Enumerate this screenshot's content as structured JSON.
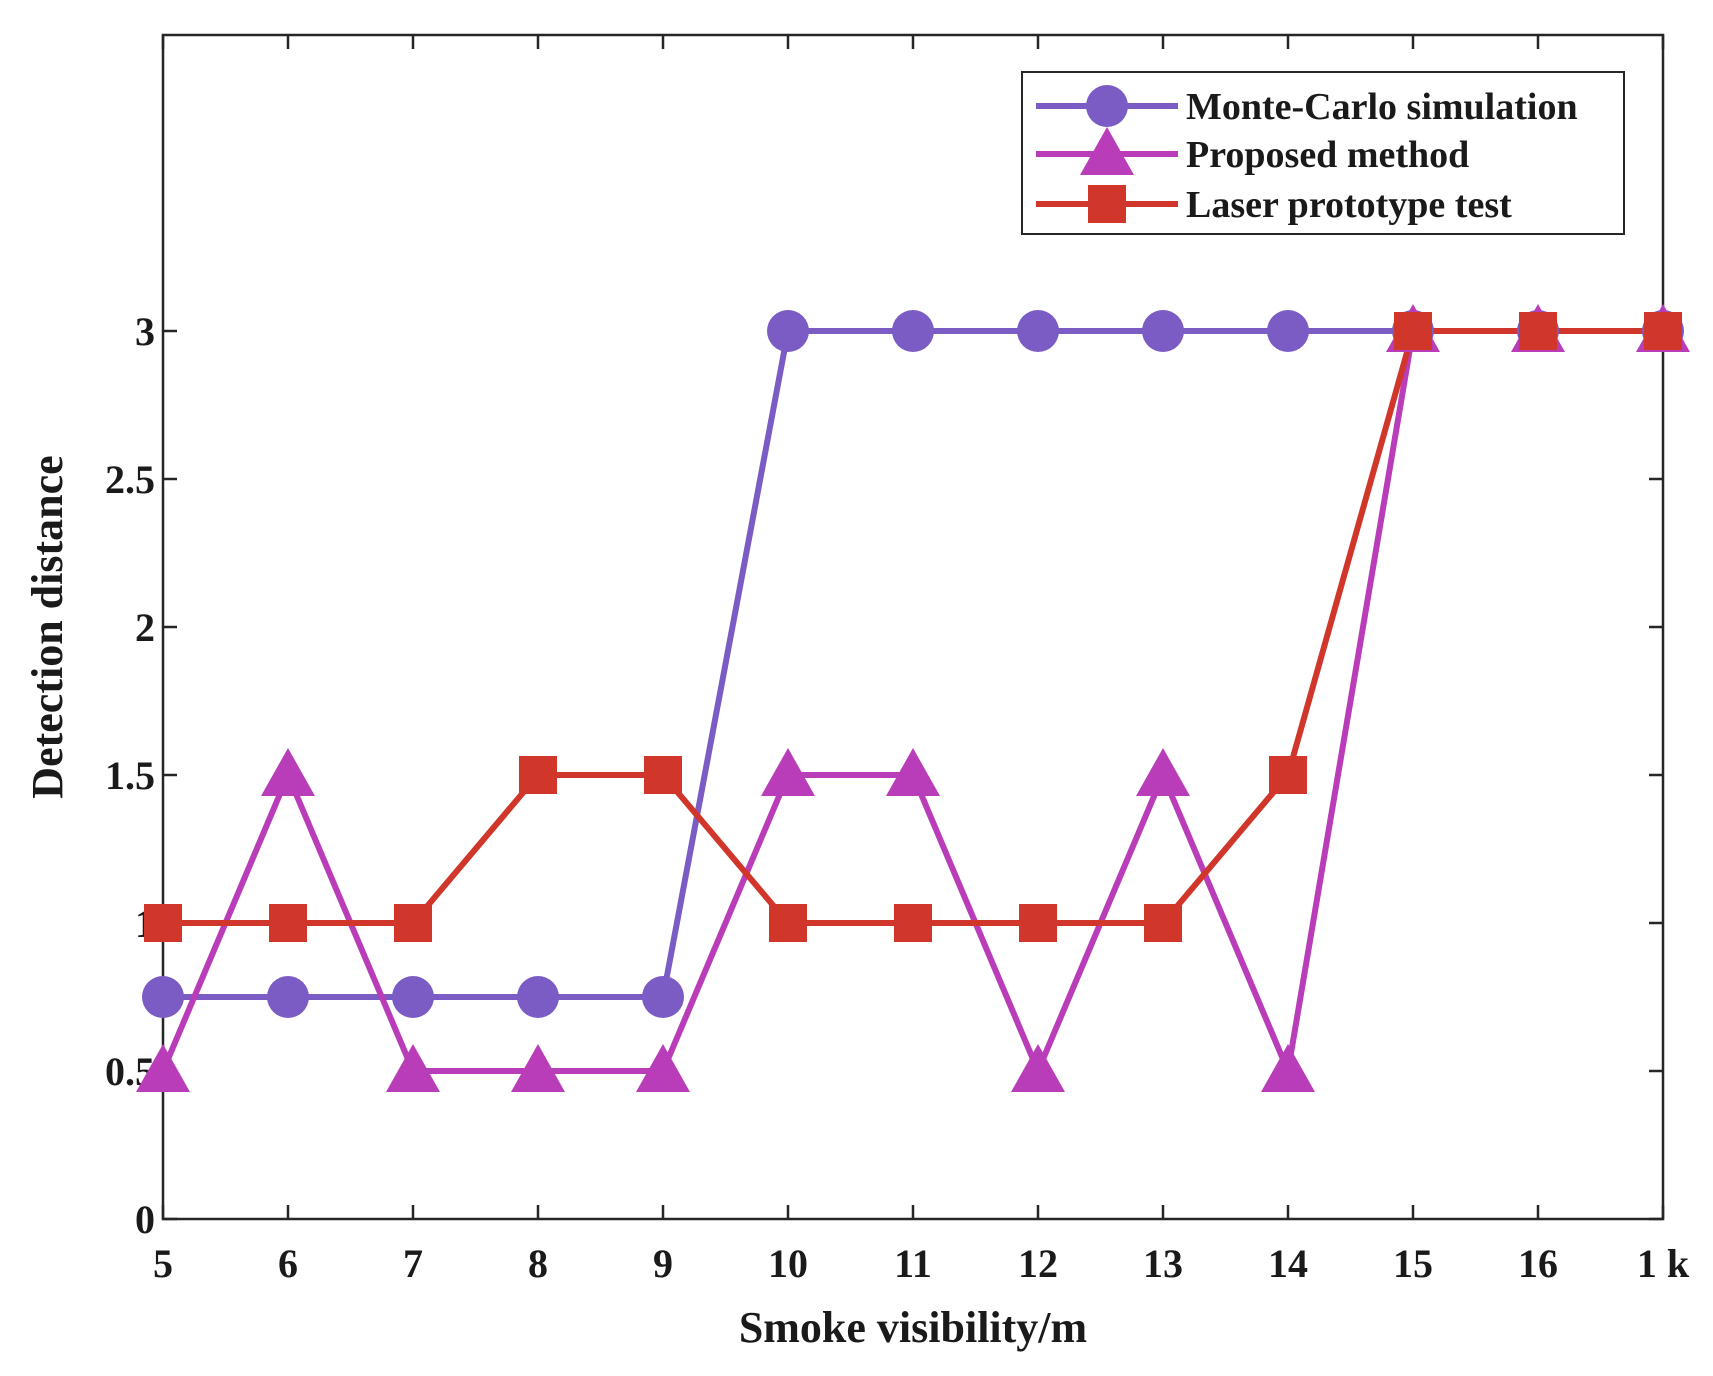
{
  "chart_data": {
    "type": "line",
    "title": "",
    "xlabel": "Smoke visibility/m",
    "ylabel": "Detection distance",
    "categories": [
      "5",
      "6",
      "7",
      "8",
      "9",
      "10",
      "11",
      "12",
      "13",
      "14",
      "15",
      "16",
      "1 k"
    ],
    "x": [
      5,
      6,
      7,
      8,
      9,
      10,
      11,
      12,
      13,
      14,
      15,
      16,
      17
    ],
    "xlim": [
      5,
      17
    ],
    "ylim": [
      0,
      4
    ],
    "yticks": [
      0,
      0.5,
      1,
      1.5,
      2,
      2.5,
      3
    ],
    "ytick_labels": [
      "0",
      "0.5",
      "1",
      "1.5",
      "2",
      "2.5",
      "3"
    ],
    "grid": false,
    "legend_position": "top-right",
    "series": [
      {
        "name": "Monte-Carlo simulation",
        "marker": "circle",
        "color": "#7b5cc4",
        "values": [
          0.75,
          0.75,
          0.75,
          0.75,
          0.75,
          3,
          3,
          3,
          3,
          3,
          3,
          3,
          3
        ]
      },
      {
        "name": "Proposed method",
        "marker": "triangle",
        "color": "#b93db8",
        "values": [
          0.5,
          1.5,
          0.5,
          0.5,
          0.5,
          1.5,
          1.5,
          0.5,
          1.5,
          0.5,
          3,
          3,
          3
        ]
      },
      {
        "name": "Laser prototype test",
        "marker": "square",
        "color": "#d0362a",
        "values": [
          1,
          1,
          1,
          1.5,
          1.5,
          1,
          1,
          1,
          1,
          1.5,
          3,
          3,
          3
        ]
      }
    ]
  }
}
